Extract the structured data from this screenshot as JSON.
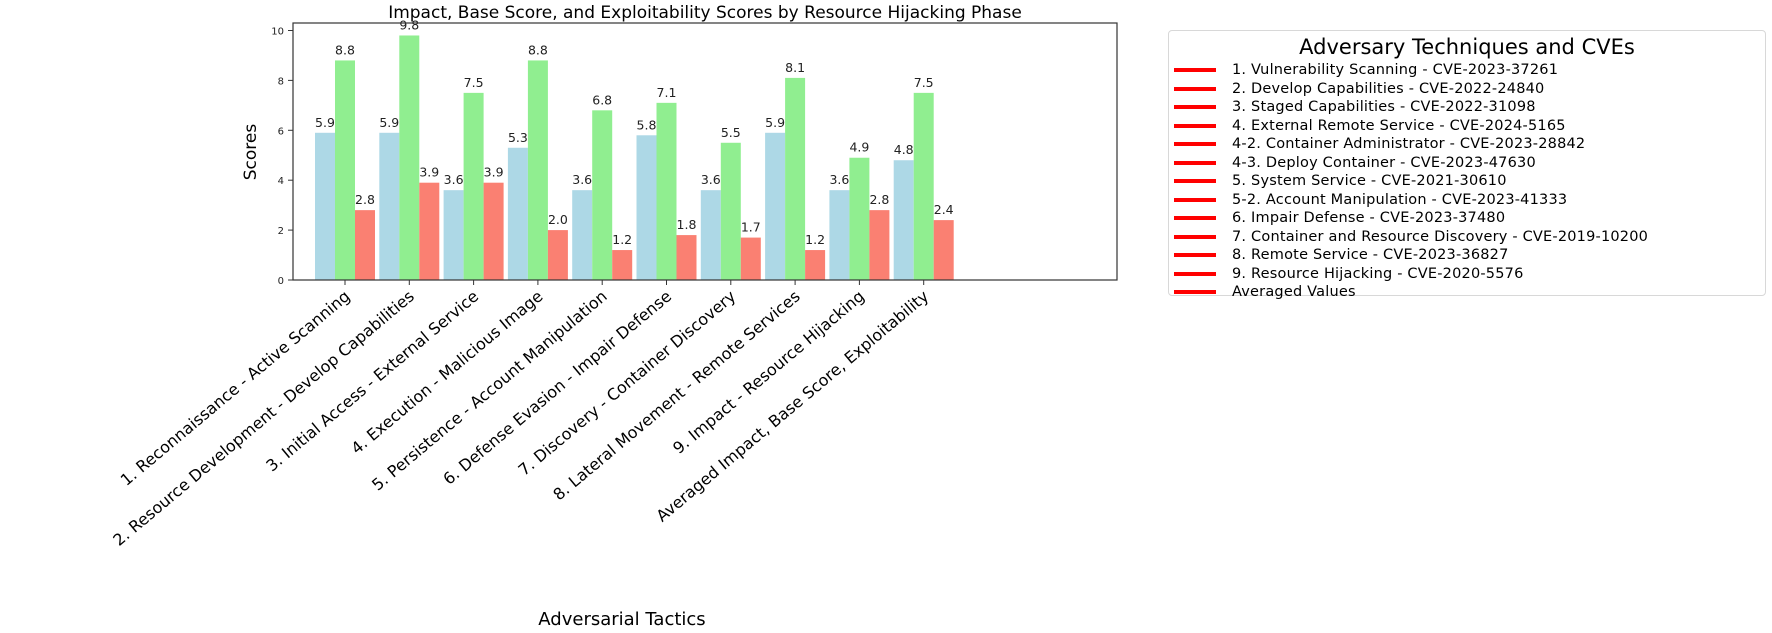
{
  "chart_data": {
    "type": "bar",
    "title": "Impact, Base Score, and Exploitability Scores by Resource Hijacking Phase",
    "xlabel": "Adversarial Tactics",
    "ylabel": "Scores",
    "ylim": [
      0,
      10.3
    ],
    "yticks": [
      0,
      2,
      4,
      6,
      8,
      10
    ],
    "grid": false,
    "legend_position": "outside-right",
    "categories": [
      "1. Reconnaissance - Active Scanning",
      "2. Resource Development - Develop Capabilities",
      "3. Initial Access - External Service",
      "4. Execution - Malicious Image",
      "5. Persistence - Account Manipulation",
      "6. Defense Evasion - Impair Defense",
      "7. Discovery - Container Discovery",
      "8. Lateral Movement - Remote Services",
      "9. Impact - Resource Hijacking",
      "Averaged Impact, Base Score, Exploitability"
    ],
    "series": [
      {
        "name": "Impact",
        "color": "#add8e6",
        "values": [
          5.9,
          5.9,
          3.6,
          5.3,
          3.6,
          5.8,
          3.6,
          5.9,
          3.6,
          4.8
        ]
      },
      {
        "name": "Base Score",
        "color": "#90ee90",
        "values": [
          8.8,
          9.8,
          7.5,
          8.8,
          6.8,
          7.1,
          5.5,
          8.1,
          4.9,
          7.5
        ]
      },
      {
        "name": "Exploitability",
        "color": "#fa8072",
        "values": [
          2.8,
          3.9,
          3.9,
          2.0,
          1.2,
          1.8,
          1.7,
          1.2,
          2.8,
          2.4
        ]
      }
    ],
    "legend": {
      "title": "Adversary Techniques and CVEs",
      "line_color": "#ff0000",
      "entries": [
        "1. Vulnerability Scanning - CVE-2023-37261",
        "2. Develop Capabilities - CVE-2022-24840",
        "3. Staged Capabilities - CVE-2022-31098",
        "4. External Remote Service - CVE-2024-5165",
        "4-2. Container Administrator - CVE-2023-28842",
        "4-3. Deploy Container - CVE-2023-47630",
        "5. System Service - CVE-2021-30610",
        "5-2. Account Manipulation - CVE-2023-41333",
        "6. Impair Defense - CVE-2023-37480",
        "7. Container and Resource Discovery - CVE-2019-10200",
        "8. Remote Service - CVE-2023-36827",
        "9. Resource Hijacking - CVE-2020-5576",
        "Averaged Values"
      ]
    }
  }
}
